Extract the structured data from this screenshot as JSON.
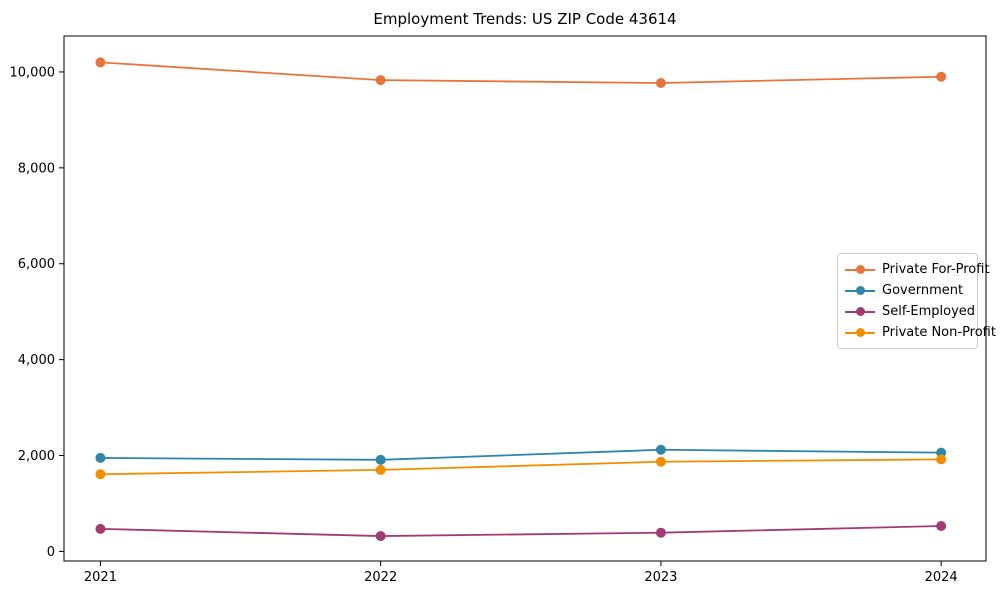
{
  "title": "Employment Trends: US ZIP Code 43614",
  "chart_data": {
    "type": "line",
    "title": "Employment Trends: US ZIP Code 43614",
    "xlabel": "",
    "ylabel": "",
    "x": [
      2021,
      2022,
      2023,
      2024
    ],
    "x_tick_labels": [
      "2021",
      "2022",
      "2023",
      "2024"
    ],
    "y_ticks": [
      0,
      2000,
      4000,
      6000,
      8000,
      10000
    ],
    "y_tick_labels": [
      "0",
      "2,000",
      "4,000",
      "6,000",
      "8,000",
      "10,000"
    ],
    "xlim": [
      2020.87,
      2024.16
    ],
    "ylim": [
      -200,
      10750
    ],
    "grid": false,
    "legend_position": "center right",
    "marker": "circle",
    "series": [
      {
        "name": "Private For-Profit",
        "color": "#E8743B",
        "values": [
          10200,
          9830,
          9770,
          9900
        ]
      },
      {
        "name": "Government",
        "color": "#2E86AB",
        "values": [
          1950,
          1910,
          2120,
          2060
        ]
      },
      {
        "name": "Self-Employed",
        "color": "#A23B72",
        "values": [
          470,
          320,
          390,
          530
        ]
      },
      {
        "name": "Private Non-Profit",
        "color": "#F18F01",
        "values": [
          1610,
          1700,
          1870,
          1920
        ]
      }
    ]
  }
}
